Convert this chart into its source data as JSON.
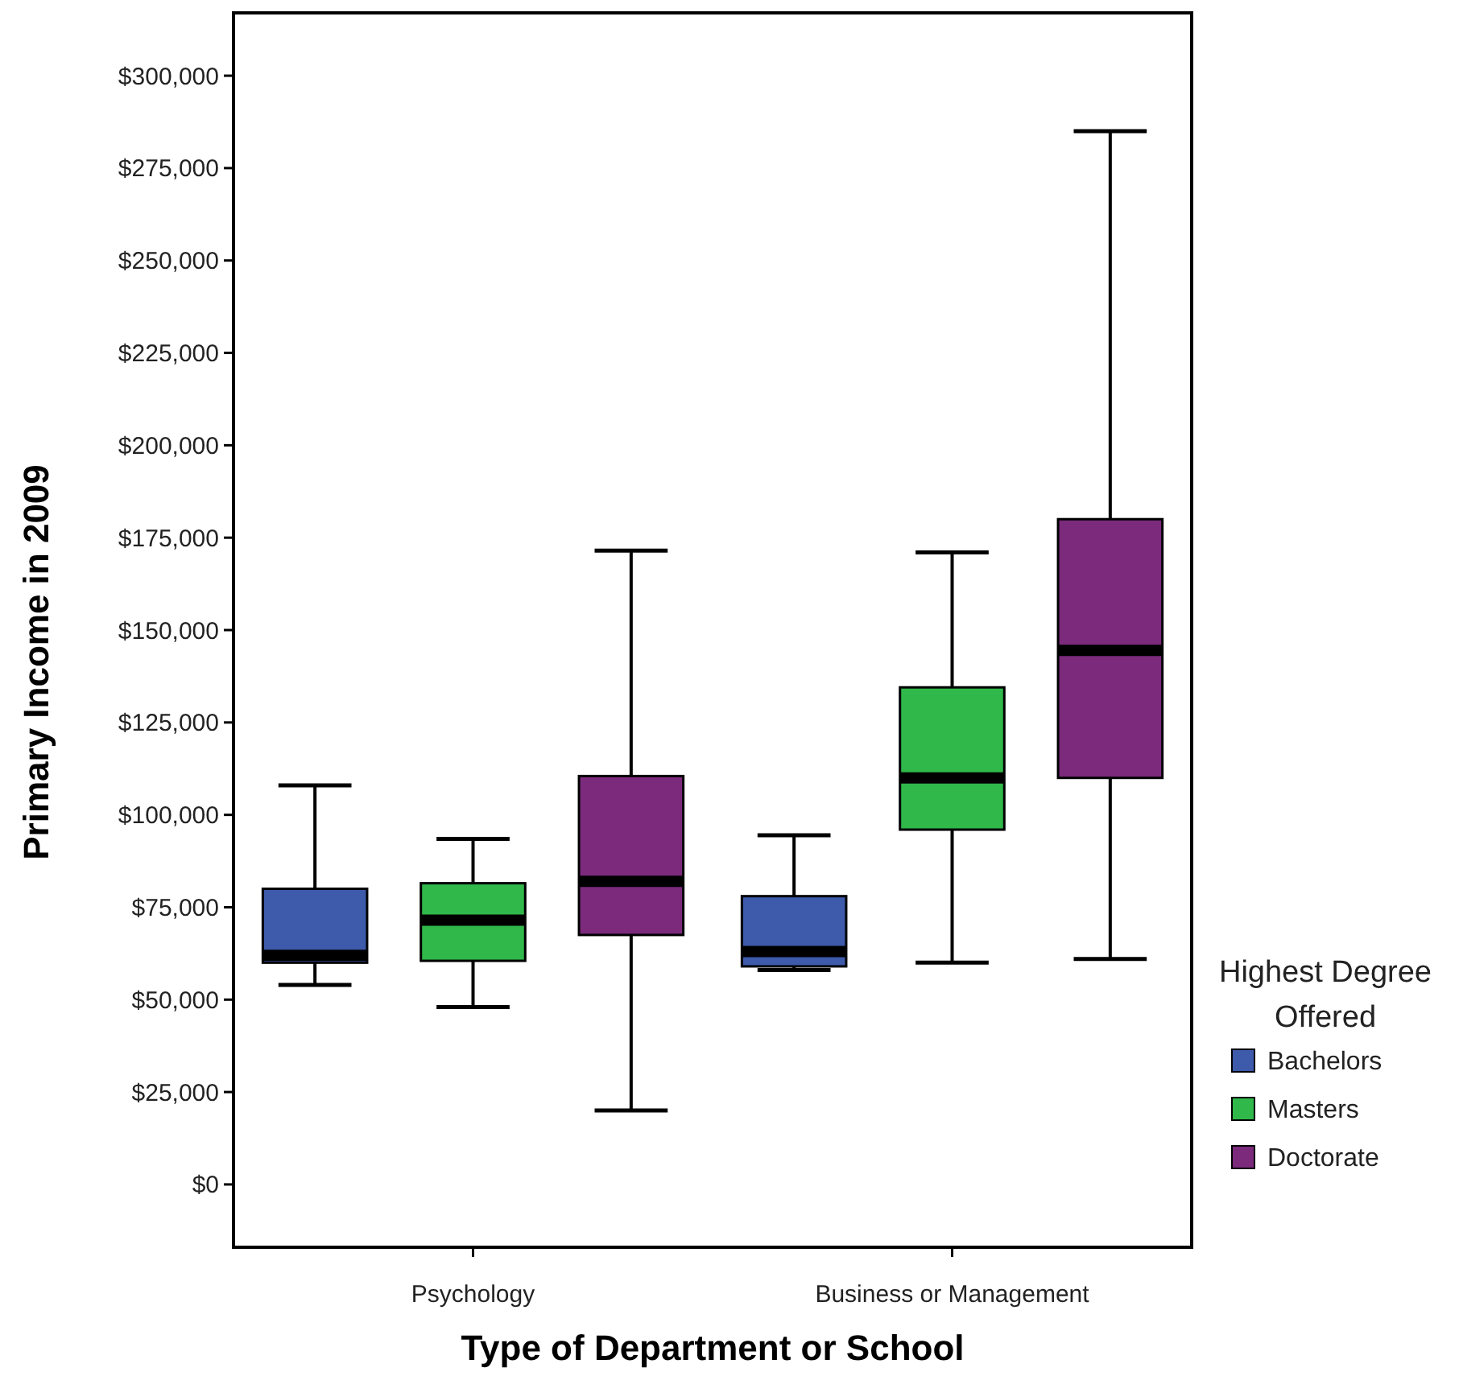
{
  "chart_data": {
    "type": "box",
    "xlabel": "Type of Department or School",
    "ylabel": "Primary Income in 2009",
    "legend_title": "Highest Degree Offered",
    "legend": "right",
    "grid": false,
    "categories": [
      "Psychology",
      "Business or Management"
    ],
    "ylim": [
      -17000,
      317000
    ],
    "yticks": [
      {
        "value": 0,
        "label": "$0"
      },
      {
        "value": 25000,
        "label": "$25,000"
      },
      {
        "value": 50000,
        "label": "$50,000"
      },
      {
        "value": 75000,
        "label": "$75,000"
      },
      {
        "value": 100000,
        "label": "$100,000"
      },
      {
        "value": 125000,
        "label": "$125,000"
      },
      {
        "value": 150000,
        "label": "$150,000"
      },
      {
        "value": 175000,
        "label": "$175,000"
      },
      {
        "value": 200000,
        "label": "$200,000"
      },
      {
        "value": 225000,
        "label": "$225,000"
      },
      {
        "value": 250000,
        "label": "$250,000"
      },
      {
        "value": 275000,
        "label": "$275,000"
      },
      {
        "value": 300000,
        "label": "$300,000"
      }
    ],
    "series": [
      {
        "name": "Bachelors",
        "color": "#3d5aab",
        "boxes": [
          {
            "low": 54000,
            "q1": 60000,
            "median": 62000,
            "q3": 80000,
            "high": 108000
          },
          {
            "low": 58000,
            "q1": 59000,
            "median": 63000,
            "q3": 78000,
            "high": 94500
          }
        ]
      },
      {
        "name": "Masters",
        "color": "#30b84a",
        "boxes": [
          {
            "low": 48000,
            "q1": 60500,
            "median": 71500,
            "q3": 81500,
            "high": 93500
          },
          {
            "low": 60000,
            "q1": 96000,
            "median": 110000,
            "q3": 134500,
            "high": 171000
          }
        ]
      },
      {
        "name": "Doctorate",
        "color": "#7b2a7c",
        "boxes": [
          {
            "low": 20000,
            "q1": 67500,
            "median": 82000,
            "q3": 110500,
            "high": 171500
          },
          {
            "low": 61000,
            "q1": 110000,
            "median": 144500,
            "q3": 180000,
            "high": 285000
          }
        ]
      }
    ]
  }
}
